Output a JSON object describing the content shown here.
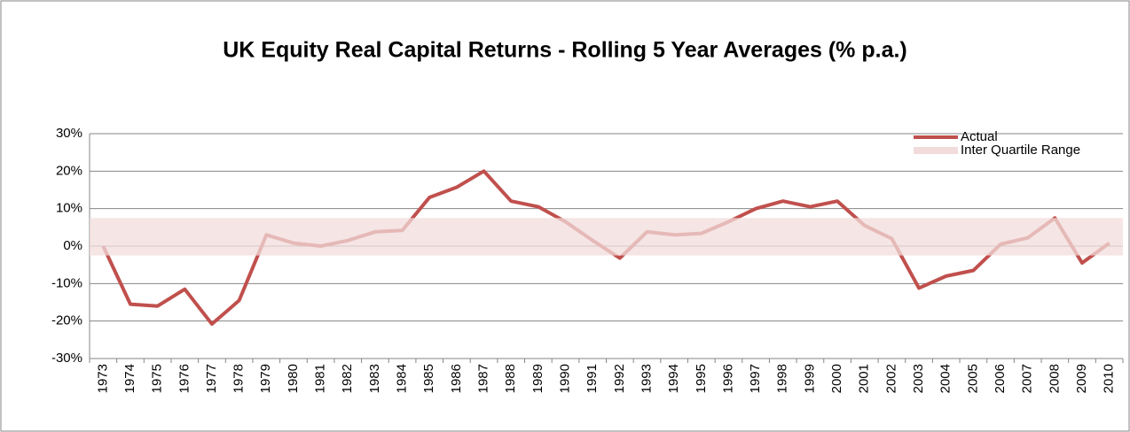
{
  "chart_data": {
    "type": "line",
    "title": "UK Equity Real Capital Returns - Rolling 5 Year Averages (% p.a.)",
    "categories": [
      "1973",
      "1974",
      "1975",
      "1976",
      "1977",
      "1978",
      "1979",
      "1980",
      "1981",
      "1982",
      "1983",
      "1984",
      "1985",
      "1986",
      "1987",
      "1988",
      "1989",
      "1990",
      "1991",
      "1992",
      "1993",
      "1994",
      "1995",
      "1996",
      "1997",
      "1998",
      "1999",
      "2000",
      "2001",
      "2002",
      "2003",
      "2004",
      "2005",
      "2006",
      "2007",
      "2008",
      "2009",
      "2010"
    ],
    "series": [
      {
        "name": "Actual",
        "color": "#c0504d",
        "values": [
          0,
          -15.5,
          -16,
          -11.5,
          -20.8,
          -14.5,
          3,
          0.8,
          0,
          1.5,
          3.8,
          4.2,
          13,
          15.7,
          20,
          12,
          10.5,
          6.5,
          1.5,
          -3.2,
          3.8,
          3,
          3.4,
          6.5,
          10,
          12,
          10.5,
          12,
          5.5,
          2,
          -11.2,
          -8,
          -6.5,
          0.5,
          2.2,
          7.5,
          -4.5,
          0.8
        ]
      }
    ],
    "bands": [
      {
        "name": "Inter Quartile Range",
        "color": "#f2dcdb",
        "range": [
          -2.5,
          7.5
        ]
      }
    ],
    "ylim": [
      -30,
      30
    ],
    "yticks": [
      {
        "value": -30,
        "label": "-30%"
      },
      {
        "value": -20,
        "label": "-20%"
      },
      {
        "value": -10,
        "label": "-10%"
      },
      {
        "value": 0,
        "label": "0%"
      },
      {
        "value": 10,
        "label": "10%"
      },
      {
        "value": 20,
        "label": "20%"
      },
      {
        "value": 30,
        "label": "30%"
      }
    ],
    "grid": true,
    "legend": "top-right"
  }
}
